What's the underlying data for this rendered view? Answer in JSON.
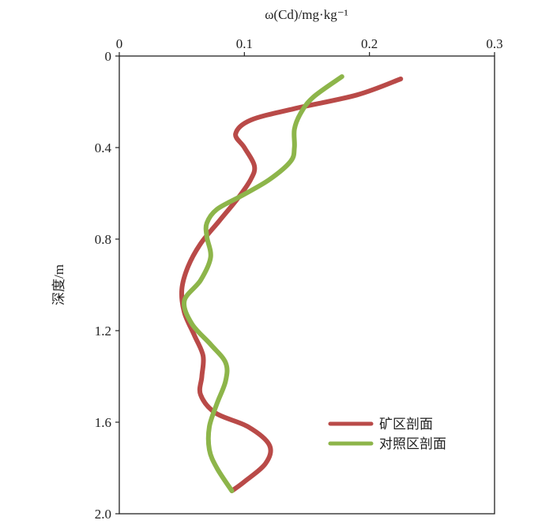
{
  "chart_data": {
    "type": "line",
    "title": "",
    "xlabel": "ω(Cd)/mg·kg⁻¹",
    "ylabel": "深度/m",
    "x_axis_position": "top",
    "y_axis_inverted": true,
    "xlim": [
      0,
      0.3
    ],
    "ylim": [
      0,
      2.0
    ],
    "xticks": [
      "0",
      "0.1",
      "0.2",
      "0.3"
    ],
    "yticks": [
      "0",
      "0.4",
      "0.8",
      "1.2",
      "1.6",
      "2.0"
    ],
    "xtick_values": [
      0,
      0.1,
      0.2,
      0.3
    ],
    "ytick_values": [
      0,
      0.4,
      0.8,
      1.2,
      1.6,
      2.0
    ],
    "grid": false,
    "legend_position": "lower-right",
    "series": [
      {
        "name": "矿区剖面",
        "color": "#b94a48",
        "points": [
          [
            0.225,
            0.1
          ],
          [
            0.19,
            0.17
          ],
          [
            0.14,
            0.23
          ],
          [
            0.105,
            0.28
          ],
          [
            0.093,
            0.34
          ],
          [
            0.1,
            0.4
          ],
          [
            0.108,
            0.48
          ],
          [
            0.105,
            0.54
          ],
          [
            0.095,
            0.62
          ],
          [
            0.08,
            0.72
          ],
          [
            0.065,
            0.82
          ],
          [
            0.055,
            0.92
          ],
          [
            0.05,
            1.02
          ],
          [
            0.052,
            1.12
          ],
          [
            0.06,
            1.22
          ],
          [
            0.067,
            1.31
          ],
          [
            0.066,
            1.4
          ],
          [
            0.065,
            1.48
          ],
          [
            0.077,
            1.56
          ],
          [
            0.103,
            1.62
          ],
          [
            0.12,
            1.7
          ],
          [
            0.117,
            1.78
          ],
          [
            0.1,
            1.86
          ],
          [
            0.09,
            1.9
          ]
        ]
      },
      {
        "name": "对照区剖面",
        "color": "#8db54a",
        "points": [
          [
            0.178,
            0.09
          ],
          [
            0.155,
            0.18
          ],
          [
            0.145,
            0.25
          ],
          [
            0.14,
            0.32
          ],
          [
            0.14,
            0.4
          ],
          [
            0.137,
            0.46
          ],
          [
            0.12,
            0.54
          ],
          [
            0.098,
            0.61
          ],
          [
            0.078,
            0.67
          ],
          [
            0.07,
            0.73
          ],
          [
            0.07,
            0.79
          ],
          [
            0.073,
            0.88
          ],
          [
            0.065,
            0.98
          ],
          [
            0.052,
            1.07
          ],
          [
            0.058,
            1.17
          ],
          [
            0.073,
            1.26
          ],
          [
            0.085,
            1.34
          ],
          [
            0.085,
            1.42
          ],
          [
            0.078,
            1.52
          ],
          [
            0.072,
            1.62
          ],
          [
            0.072,
            1.72
          ],
          [
            0.078,
            1.8
          ],
          [
            0.09,
            1.9
          ]
        ]
      }
    ]
  }
}
